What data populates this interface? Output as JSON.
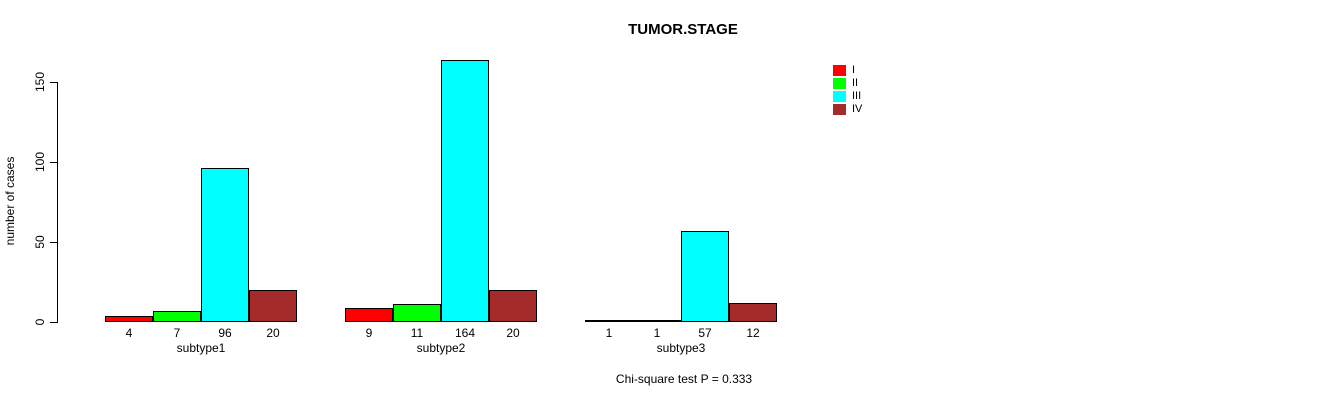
{
  "chart_data": {
    "type": "bar",
    "title": "TUMOR.STAGE",
    "ylabel": "number of cases",
    "xlabel": "",
    "categories": [
      "subtype1",
      "subtype2",
      "subtype3"
    ],
    "series": [
      {
        "name": "I",
        "color": "#ff0000",
        "values": [
          4,
          9,
          1
        ]
      },
      {
        "name": "II",
        "color": "#00ff00",
        "values": [
          7,
          11,
          1
        ]
      },
      {
        "name": "III",
        "color": "#00ffff",
        "values": [
          96,
          164,
          57
        ]
      },
      {
        "name": "IV",
        "color": "#a52a2a",
        "values": [
          20,
          20,
          12
        ]
      }
    ],
    "bar_value_labels": [
      [
        "4",
        "7",
        "96",
        "20"
      ],
      [
        "9",
        "11",
        "164",
        "20"
      ],
      [
        "1",
        "1",
        "57",
        "12"
      ]
    ],
    "yticks": [
      "0",
      "50",
      "100",
      "150"
    ],
    "ylim": [
      0,
      164
    ],
    "grid": false,
    "legend_position": "right",
    "annotation": "Chi-square test P = 0.333",
    "background_color": "#ffffff",
    "axis_color": "#000000",
    "text_color": "#000000"
  }
}
